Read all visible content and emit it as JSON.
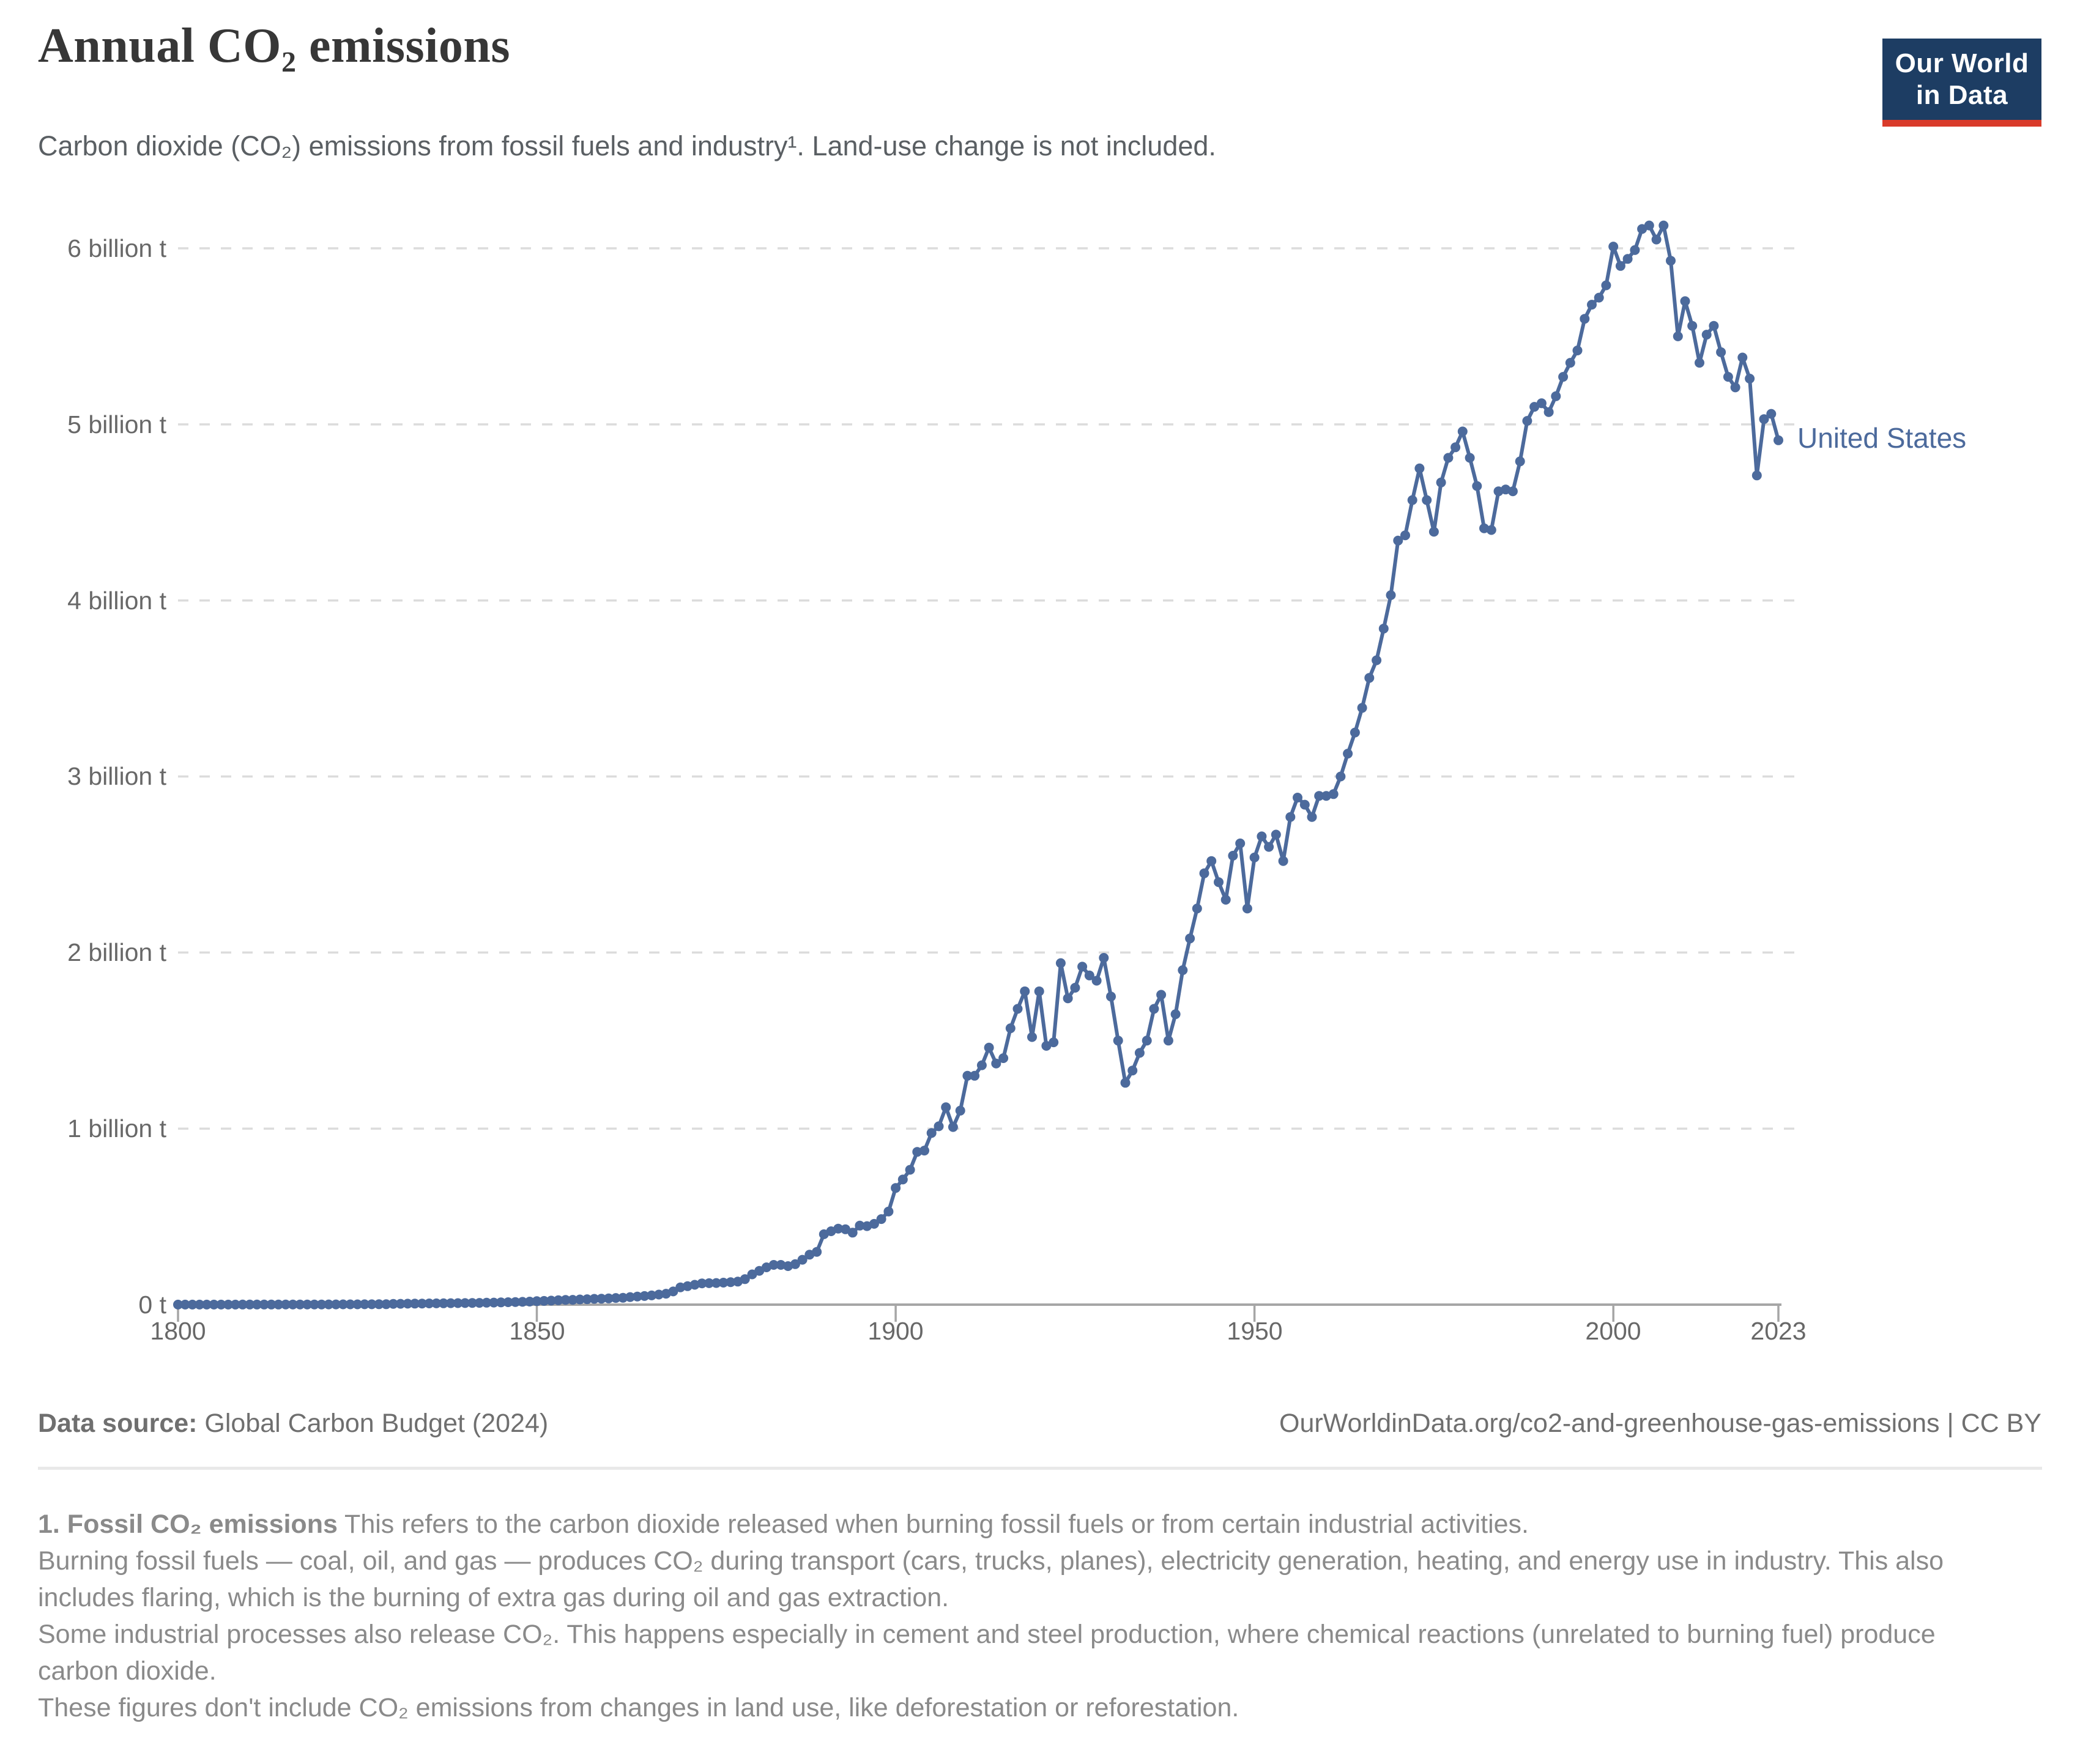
{
  "header": {
    "title": "Annual CO₂ emissions",
    "logo": {
      "line1": "Our World",
      "line2": "in Data"
    }
  },
  "subtitle": "Carbon dioxide (CO₂) emissions from fossil fuels and industry¹. Land-use change is not included.",
  "chart_data": {
    "type": "line",
    "title": "Annual CO₂ emissions",
    "xlabel": "",
    "ylabel": "",
    "unit": "billion tonnes CO₂",
    "xlim": [
      1800,
      2023
    ],
    "ylim": [
      0,
      6.4
    ],
    "grid": "horizontal dashed gridlines",
    "legend_position": "label at end of line",
    "y_tick_values": [
      6,
      5,
      4,
      3,
      2,
      1,
      0
    ],
    "y_tick_labels": [
      "6 billion t",
      "5 billion t",
      "4 billion t",
      "3 billion t",
      "2 billion t",
      "1 billion t",
      "0 t"
    ],
    "x_tick_values": [
      1800,
      1850,
      1900,
      1950,
      2000,
      2023
    ],
    "x_tick_labels": [
      "1800",
      "1850",
      "1900",
      "1950",
      "2000",
      "2023"
    ],
    "series": [
      {
        "name": "United States",
        "color": "#4c6a9c",
        "years": [
          1800,
          1801,
          1802,
          1803,
          1804,
          1805,
          1806,
          1807,
          1808,
          1809,
          1810,
          1811,
          1812,
          1813,
          1814,
          1815,
          1816,
          1817,
          1818,
          1819,
          1820,
          1821,
          1822,
          1823,
          1824,
          1825,
          1826,
          1827,
          1828,
          1829,
          1830,
          1831,
          1832,
          1833,
          1834,
          1835,
          1836,
          1837,
          1838,
          1839,
          1840,
          1841,
          1842,
          1843,
          1844,
          1845,
          1846,
          1847,
          1848,
          1849,
          1850,
          1851,
          1852,
          1853,
          1854,
          1855,
          1856,
          1857,
          1858,
          1859,
          1860,
          1861,
          1862,
          1863,
          1864,
          1865,
          1866,
          1867,
          1868,
          1869,
          1870,
          1871,
          1872,
          1873,
          1874,
          1875,
          1876,
          1877,
          1878,
          1879,
          1880,
          1881,
          1882,
          1883,
          1884,
          1885,
          1886,
          1887,
          1888,
          1889,
          1890,
          1891,
          1892,
          1893,
          1894,
          1895,
          1896,
          1897,
          1898,
          1899,
          1900,
          1901,
          1902,
          1903,
          1904,
          1905,
          1906,
          1907,
          1908,
          1909,
          1910,
          1911,
          1912,
          1913,
          1914,
          1915,
          1916,
          1917,
          1918,
          1919,
          1920,
          1921,
          1922,
          1923,
          1924,
          1925,
          1926,
          1927,
          1928,
          1929,
          1930,
          1931,
          1932,
          1933,
          1934,
          1935,
          1936,
          1937,
          1938,
          1939,
          1940,
          1941,
          1942,
          1943,
          1944,
          1945,
          1946,
          1947,
          1948,
          1949,
          1950,
          1951,
          1952,
          1953,
          1954,
          1955,
          1956,
          1957,
          1958,
          1959,
          1960,
          1961,
          1962,
          1963,
          1964,
          1965,
          1966,
          1967,
          1968,
          1969,
          1970,
          1971,
          1972,
          1973,
          1974,
          1975,
          1976,
          1977,
          1978,
          1979,
          1980,
          1981,
          1982,
          1983,
          1984,
          1985,
          1986,
          1987,
          1988,
          1989,
          1990,
          1991,
          1992,
          1993,
          1994,
          1995,
          1996,
          1997,
          1998,
          1999,
          2000,
          2001,
          2002,
          2003,
          2004,
          2005,
          2006,
          2007,
          2008,
          2009,
          2010,
          2011,
          2012,
          2013,
          2014,
          2015,
          2016,
          2017,
          2018,
          2019,
          2020,
          2021,
          2022,
          2023
        ],
        "values": [
          0.0003,
          0.0003,
          0.0003,
          0.0004,
          0.0004,
          0.0004,
          0.0005,
          0.0005,
          0.0005,
          0.0006,
          0.0006,
          0.0007,
          0.0007,
          0.0008,
          0.0008,
          0.0009,
          0.0009,
          0.001,
          0.0011,
          0.0011,
          0.0012,
          0.0013,
          0.0014,
          0.0016,
          0.0017,
          0.0019,
          0.002,
          0.0022,
          0.0024,
          0.0026,
          0.0046,
          0.005,
          0.0054,
          0.0059,
          0.0063,
          0.0068,
          0.0073,
          0.0078,
          0.0082,
          0.0086,
          0.009,
          0.0096,
          0.0102,
          0.011,
          0.0119,
          0.0129,
          0.0139,
          0.015,
          0.0161,
          0.0175,
          0.0198,
          0.0212,
          0.0229,
          0.0249,
          0.0272,
          0.0275,
          0.0296,
          0.0309,
          0.0329,
          0.034,
          0.0355,
          0.038,
          0.039,
          0.0432,
          0.0463,
          0.049,
          0.0523,
          0.0574,
          0.0623,
          0.075,
          0.0983,
          0.105,
          0.113,
          0.121,
          0.122,
          0.123,
          0.125,
          0.128,
          0.131,
          0.145,
          0.172,
          0.192,
          0.212,
          0.226,
          0.226,
          0.219,
          0.23,
          0.255,
          0.284,
          0.3,
          0.4,
          0.417,
          0.432,
          0.428,
          0.409,
          0.449,
          0.446,
          0.459,
          0.486,
          0.529,
          0.663,
          0.711,
          0.766,
          0.868,
          0.875,
          0.975,
          1.013,
          1.121,
          1.009,
          1.102,
          1.3,
          1.3,
          1.36,
          1.46,
          1.37,
          1.4,
          1.57,
          1.68,
          1.78,
          1.52,
          1.78,
          1.47,
          1.49,
          1.94,
          1.74,
          1.8,
          1.92,
          1.87,
          1.84,
          1.97,
          1.75,
          1.5,
          1.26,
          1.33,
          1.43,
          1.5,
          1.68,
          1.76,
          1.5,
          1.65,
          1.9,
          2.08,
          2.25,
          2.45,
          2.52,
          2.4,
          2.3,
          2.55,
          2.62,
          2.25,
          2.54,
          2.66,
          2.6,
          2.67,
          2.52,
          2.77,
          2.88,
          2.84,
          2.77,
          2.89,
          2.89,
          2.9,
          3.0,
          3.13,
          3.25,
          3.39,
          3.56,
          3.66,
          3.84,
          4.03,
          4.34,
          4.37,
          4.57,
          4.75,
          4.57,
          4.39,
          4.67,
          4.81,
          4.87,
          4.96,
          4.81,
          4.65,
          4.41,
          4.4,
          4.62,
          4.63,
          4.62,
          4.79,
          5.02,
          5.1,
          5.12,
          5.07,
          5.16,
          5.27,
          5.35,
          5.42,
          5.6,
          5.68,
          5.72,
          5.79,
          6.01,
          5.9,
          5.94,
          5.99,
          6.11,
          6.13,
          6.05,
          6.13,
          5.93,
          5.5,
          5.7,
          5.56,
          5.35,
          5.51,
          5.56,
          5.41,
          5.27,
          5.21,
          5.38,
          5.26,
          4.71,
          5.03,
          5.06,
          4.91
        ]
      }
    ]
  },
  "footer": {
    "source_label": "Data source:",
    "source_value": " Global Carbon Budget (2024)",
    "attribution": "OurWorldinData.org/co2-and-greenhouse-gas-emissions | CC BY"
  },
  "footnote": {
    "lead": "1. Fossil CO₂ emissions",
    "p1_rest": " This refers to the carbon dioxide released when burning fossil fuels or from certain industrial activities.",
    "p2": "Burning fossil fuels — coal, oil, and gas — produces CO₂ during transport (cars, trucks, planes), electricity generation, heating, and energy use in industry. This also includes flaring, which is the burning of extra gas during oil and gas extraction.",
    "p3": "Some industrial processes also release CO₂. This happens especially in cement and steel production, where chemical reactions (unrelated to burning fuel) produce carbon dioxide.",
    "p4": "These figures don't include CO₂ emissions from changes in land use, like deforestation or reforestation."
  },
  "colors": {
    "line": "#4c6a9c",
    "logo_background": "#1d3d63",
    "logo_bar": "#d93b2a",
    "gridline": "#dcdcdc",
    "axis": "#a6a6a6"
  }
}
